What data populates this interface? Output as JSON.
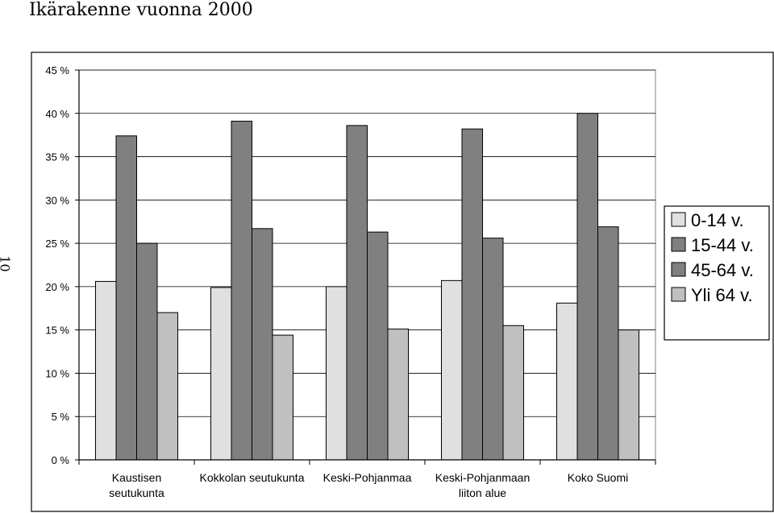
{
  "page": {
    "title": "Ikärakenne vuonna 2000",
    "side_number": "10"
  },
  "chart_data": {
    "type": "bar",
    "title": "Ikärakenne vuonna 2000",
    "xlabel": "",
    "ylabel": "",
    "ylim": [
      0,
      45
    ],
    "y_ticks": [
      "0 %",
      "5 %",
      "10 %",
      "15 %",
      "20 %",
      "25 %",
      "30 %",
      "35 %",
      "40 %",
      "45 %"
    ],
    "y_tick_values": [
      0,
      5,
      10,
      15,
      20,
      25,
      30,
      35,
      40,
      45
    ],
    "grid": true,
    "legend_position": "right",
    "categories": [
      [
        "Kaustisen",
        "seutukunta"
      ],
      [
        "Kokkolan seutukunta"
      ],
      [
        "Keski-Pohjanmaa"
      ],
      [
        "Keski-Pohjanmaan",
        "liiton alue"
      ],
      [
        "Koko Suomi"
      ]
    ],
    "series": [
      {
        "name": "0-14 v.",
        "color": "#e0e0e0",
        "values": [
          20.6,
          19.9,
          20.0,
          20.7,
          18.1
        ]
      },
      {
        "name": "15-44 v.",
        "color": "#808080",
        "values": [
          37.4,
          39.1,
          38.6,
          38.2,
          40.0
        ]
      },
      {
        "name": "45-64 v.",
        "color": "#808080",
        "values": [
          25.0,
          26.7,
          26.3,
          25.6,
          26.9
        ]
      },
      {
        "name": "Yli 64 v.",
        "color": "#c0c0c0",
        "values": [
          17.0,
          14.4,
          15.1,
          15.5,
          15.0
        ]
      }
    ]
  }
}
